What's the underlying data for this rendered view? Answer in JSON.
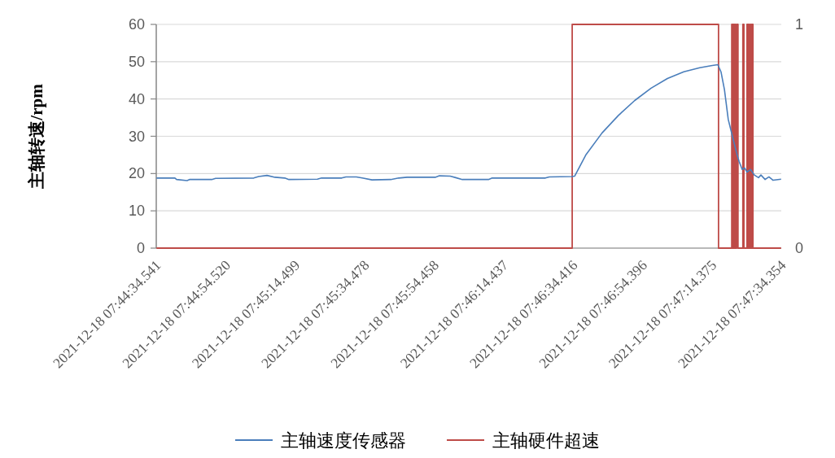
{
  "chart_data": {
    "type": "line",
    "ylabel": "主轴转速/rpm",
    "xlim": [
      "2021-12-18T07:44:34.541",
      "2021-12-18T07:47:34.354"
    ],
    "xticks": [
      {
        "value": "2021-12-18T07:44:34.541",
        "label": "2021-12-18 07:44:34.541"
      },
      {
        "value": "2021-12-18T07:44:54.520",
        "label": "2021-12-18 07:44:54.520"
      },
      {
        "value": "2021-12-18T07:45:14.499",
        "label": "2021-12-18 07:45:14.499"
      },
      {
        "value": "2021-12-18T07:45:34.478",
        "label": "2021-12-18 07:45:34.478"
      },
      {
        "value": "2021-12-18T07:45:54.458",
        "label": "2021-12-18 07:45:54.458"
      },
      {
        "value": "2021-12-18T07:46:14.437",
        "label": "2021-12-18 07:46:14.437"
      },
      {
        "value": "2021-12-18T07:46:34.416",
        "label": "2021-12-18 07:46:34.416"
      },
      {
        "value": "2021-12-18T07:46:54.396",
        "label": "2021-12-18 07:46:54.396"
      },
      {
        "value": "2021-12-18T07:47:14.375",
        "label": "2021-12-18 07:47:14.375"
      },
      {
        "value": "2021-12-18T07:47:34.354",
        "label": "2021-12-18 07:47:34.354"
      }
    ],
    "ylim": [
      0,
      60
    ],
    "yticks": [
      0,
      10,
      20,
      30,
      40,
      50,
      60
    ],
    "y2lim": [
      0,
      1
    ],
    "y2ticks": [
      0,
      1
    ],
    "grid": "y",
    "legend": "bottom",
    "line_style": "solid",
    "series": [
      {
        "name": "主轴速度传感器",
        "color": "#4a7ebb",
        "x": [
          "2021-12-18T07:44:34.6",
          "2021-12-18T07:44:39.9",
          "2021-12-18T07:44:40.4",
          "2021-12-18T07:44:43.4",
          "2021-12-18T07:44:44.1",
          "2021-12-18T07:44:50.5",
          "2021-12-18T07:44:51.6",
          "2021-12-18T07:45:02.6",
          "2021-12-18T07:45:04.0",
          "2021-12-18T07:45:06.4",
          "2021-12-18T07:45:08.7",
          "2021-12-18T07:45:11.5",
          "2021-12-18T07:45:12.7",
          "2021-12-18T07:45:20.9",
          "2021-12-18T07:45:22.1",
          "2021-12-18T07:45:27.9",
          "2021-12-18T07:45:29.1",
          "2021-12-18T07:45:32.1",
          "2021-12-18T07:45:33.8",
          "2021-12-18T07:45:36.6",
          "2021-12-18T07:45:42.0",
          "2021-12-18T07:45:44.3",
          "2021-12-18T07:45:46.7",
          "2021-12-18T07:45:54.8",
          "2021-12-18T07:45:56.0",
          "2021-12-18T07:45:59.1",
          "2021-12-18T07:46:00.7",
          "2021-12-18T07:46:02.6",
          "2021-12-18T07:46:10.1",
          "2021-12-18T07:46:11.2",
          "2021-12-18T07:46:26.5",
          "2021-12-18T07:46:27.6",
          "2021-12-18T07:46:34.2",
          "2021-12-18T07:46:34.9",
          "2021-12-18T07:46:38.2",
          "2021-12-18T07:46:42.8",
          "2021-12-18T07:46:47.5",
          "2021-12-18T07:46:52.2",
          "2021-12-18T07:46:56.9",
          "2021-12-18T07:47:01.6",
          "2021-12-18T07:47:06.3",
          "2021-12-18T07:47:10.9",
          "2021-12-18T07:47:14.5",
          "2021-12-18T07:47:16.1",
          "2021-12-18T07:47:17.0",
          "2021-12-18T07:47:18.0",
          "2021-12-18T07:47:19.1",
          "2021-12-18T07:47:20.3",
          "2021-12-18T07:47:21.5",
          "2021-12-18T07:47:22.2",
          "2021-12-18T07:47:23.1",
          "2021-12-18T07:47:23.8",
          "2021-12-18T07:47:24.5",
          "2021-12-18T07:47:25.5",
          "2021-12-18T07:47:26.6",
          "2021-12-18T07:47:27.8",
          "2021-12-18T07:47:28.5",
          "2021-12-18T07:47:29.7",
          "2021-12-18T07:47:30.8",
          "2021-12-18T07:47:32.0",
          "2021-12-18T07:47:33.4",
          "2021-12-18T07:47:34.3"
        ],
        "values": [
          18.8,
          18.8,
          18.4,
          18.1,
          18.4,
          18.4,
          18.7,
          18.8,
          19.2,
          19.5,
          19.0,
          18.8,
          18.4,
          18.5,
          18.8,
          18.8,
          19.1,
          19.1,
          18.8,
          18.3,
          18.4,
          18.8,
          19.0,
          19.0,
          19.4,
          19.3,
          18.9,
          18.4,
          18.4,
          18.8,
          18.8,
          19.1,
          19.2,
          19.3,
          25.1,
          30.9,
          35.6,
          39.6,
          42.9,
          45.5,
          47.3,
          48.4,
          49.0,
          49.2,
          47.3,
          42.5,
          34.5,
          30.0,
          25.5,
          23.3,
          21.1,
          21.5,
          20.4,
          21.1,
          19.6,
          18.9,
          19.6,
          18.4,
          19.1,
          18.2,
          18.4,
          18.5
        ]
      },
      {
        "name": "主轴硬件超速",
        "color": "#be4b48",
        "type": "step",
        "axis": "y2",
        "x": [
          "2021-12-18T07:44:34.6",
          "2021-12-18T07:46:34.2",
          "2021-12-18T07:47:16.3",
          "2021-12-18T07:47:20.1",
          "2021-12-18T07:47:20.3",
          "2021-12-18T07:47:20.5",
          "2021-12-18T07:47:20.8",
          "2021-12-18T07:47:21.0",
          "2021-12-18T07:47:21.2",
          "2021-12-18T07:47:21.5",
          "2021-12-18T07:47:21.9",
          "2021-12-18T07:47:23.3",
          "2021-12-18T07:47:23.6",
          "2021-12-18T07:47:24.5",
          "2021-12-18T07:47:24.8",
          "2021-12-18T07:47:25.0",
          "2021-12-18T07:47:25.2",
          "2021-12-18T07:47:25.5",
          "2021-12-18T07:47:25.7",
          "2021-12-18T07:47:25.9",
          "2021-12-18T07:47:26.2",
          "2021-12-18T07:47:34.3"
        ],
        "values": [
          0,
          1,
          0,
          1,
          0,
          1,
          0,
          1,
          0,
          1,
          0,
          1,
          0,
          1,
          0,
          1,
          0,
          1,
          0,
          1,
          0,
          0
        ]
      }
    ]
  }
}
